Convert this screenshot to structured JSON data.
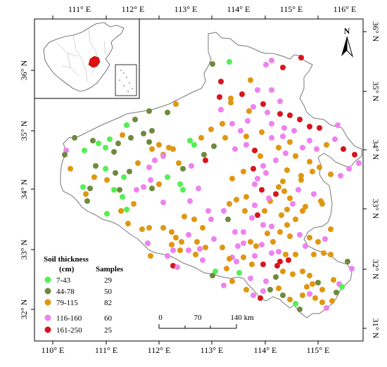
{
  "map": {
    "lon_labels": [
      "110° E",
      "111° E",
      "112° E",
      "113° E",
      "114° E",
      "115° E",
      "116° E"
    ],
    "lat_labels": [
      "36° N",
      "35° N",
      "34° N",
      "33° N",
      "32° N"
    ],
    "right_lat_labels": [
      "36° N",
      "35° N",
      "34° N",
      "33° N",
      "32° N",
      "31° N"
    ],
    "north_label": "N",
    "colors": {
      "c7_43": "#52f052",
      "c44_78": "#6e8a3e",
      "c79_115": "#e0960f",
      "c116_160": "#ee82ee",
      "c161_250": "#d7141e",
      "province_fill": "#ffffff",
      "border": "#777777",
      "inset_highlight": "#e01010"
    }
  },
  "legend": {
    "title_line1": "Soil thickness",
    "title_line2": "(cm)",
    "samples_header": "Samples",
    "items": [
      {
        "range": "7-43",
        "count": "29",
        "color": "#52f052"
      },
      {
        "range": "44-78",
        "count": "50",
        "color": "#6e8a3e"
      },
      {
        "range": "79-115",
        "count": "82",
        "color": "#e0960f"
      },
      {
        "range": "116-160",
        "count": "60",
        "color": "#ee82ee"
      },
      {
        "range": "161-250",
        "count": "25",
        "color": "#d7141e"
      }
    ]
  },
  "scale_bar": {
    "labels": [
      "0",
      "70",
      "140 km"
    ]
  }
}
